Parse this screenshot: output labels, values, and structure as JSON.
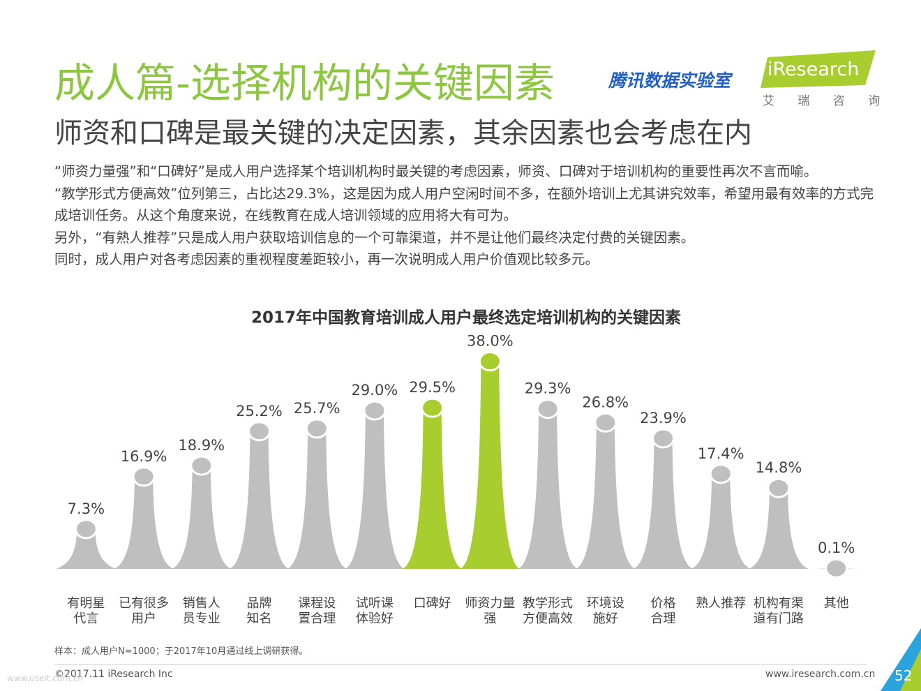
{
  "header": {
    "title": "成人篇-选择机构的关键因素",
    "subtitle": "师资和口碑是最关键的决定因素，其余因素也会考虑在内",
    "logo_tencent": "腾讯数据实验室",
    "logo_iresearch": "iResearch",
    "logo_cn": "艾 瑞 咨 询"
  },
  "body": [
    "“师资力量强”和“口碑好”是成人用户选择某个培训机构时最关键的考虑因素，师资、口碑对于培训机构的重要性再次不言而喻。",
    "“教学形式方便高效”位列第三，占比达29.3%，这是因为成人用户空闲时间不多，在额外培训上尤其讲究效率，希望用最有效率的方式完成培训任务。从这个角度来说，在线教育在成人培训领域的应用将大有可为。",
    "另外，“有熟人推荐”只是成人用户获取培训信息的一个可靠渠道，并不是让他们最终决定付费的关键因素。",
    "同时，成人用户对各考虑因素的重视程度差距较小，再一次说明成人用户价值观比较多元。"
  ],
  "chart_data": {
    "type": "bar",
    "title": "2017年中国教育培训成人用户最终选定培训机构的关键因素",
    "categories": [
      "有明星\n代言",
      "已有很多\n用户",
      "销售人\n员专业",
      "品牌\n知名",
      "课程设\n置合理",
      "试听课\n体验好",
      "口碑好",
      "师资力量\n强",
      "教学形式\n方便高效",
      "环境设\n施好",
      "价格\n合理",
      "熟人推荐",
      "机构有渠\n道有门路",
      "其他"
    ],
    "values": [
      7.3,
      16.9,
      18.9,
      25.2,
      25.7,
      29.0,
      29.5,
      38.0,
      29.3,
      26.8,
      23.9,
      17.4,
      14.8,
      0.1
    ],
    "value_labels": [
      "7.3%",
      "16.9%",
      "18.9%",
      "25.2%",
      "25.7%",
      "29.0%",
      "29.5%",
      "38.0%",
      "29.3%",
      "26.8%",
      "23.9%",
      "17.4%",
      "14.8%",
      "0.1%"
    ],
    "colors": [
      "#bfbfbf",
      "#bfbfbf",
      "#bfbfbf",
      "#bfbfbf",
      "#bfbfbf",
      "#bfbfbf",
      "#a8cd2f",
      "#a8cd2f",
      "#bfbfbf",
      "#bfbfbf",
      "#bfbfbf",
      "#bfbfbf",
      "#bfbfbf",
      "#bfbfbf"
    ],
    "ylim": [
      0,
      40
    ],
    "note": "样本：成人用户N=1000；于2017年10月通过线上调研获得。"
  },
  "footer": {
    "copyright": "©2017.11 iResearch Inc",
    "url": "www.iresearch.com.cn",
    "page": "52",
    "watermark": "www.useit.com.cn"
  }
}
